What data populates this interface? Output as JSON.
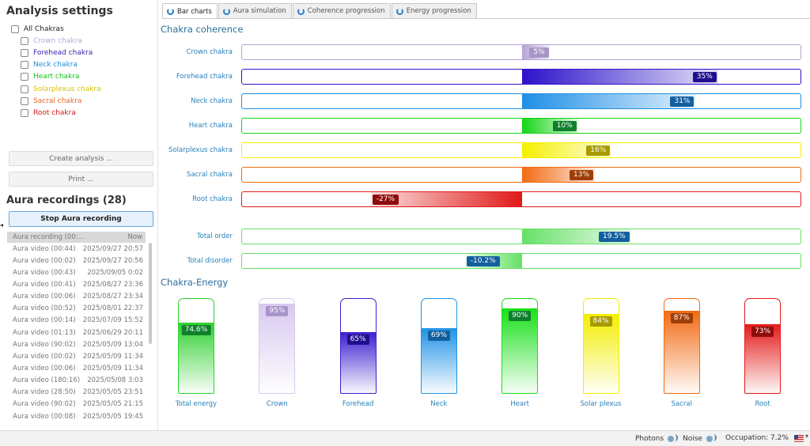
{
  "left": {
    "title": "Analysis settings",
    "all_label": "All Chakras",
    "chakras": [
      {
        "label": "Crown chakra",
        "color": "#b9a9d6"
      },
      {
        "label": "Forehead chakra",
        "color": "#3a1fb0"
      },
      {
        "label": "Neck chakra",
        "color": "#1f8fd9"
      },
      {
        "label": "Heart chakra",
        "color": "#16c21a"
      },
      {
        "label": "Solarplexus chakra",
        "color": "#d7c400"
      },
      {
        "label": "Sacral chakra",
        "color": "#e8651a"
      },
      {
        "label": "Root chakra",
        "color": "#d11a1a"
      }
    ],
    "create_btn": "Create analysis ...",
    "print_btn": "Print ...",
    "recordings_title": "Aura recordings (28)",
    "stop_btn": "Stop Aura recording",
    "rec_head": {
      "name": "Aura recording  (00:...",
      "time": "Now"
    },
    "recordings": [
      {
        "name": "Aura video  (00:44)",
        "time": "2025/09/27 20:57"
      },
      {
        "name": "Aura video  (00:02)",
        "time": "2025/09/27 20:56"
      },
      {
        "name": "Aura video  (00:43)",
        "time": "2025/09/05 0:02"
      },
      {
        "name": "Aura video  (00:41)",
        "time": "2025/08/27 23:36"
      },
      {
        "name": "Aura video  (00:06)",
        "time": "2025/08/27 23:34"
      },
      {
        "name": "Aura video  (00:52)",
        "time": "2025/08/01 22:37"
      },
      {
        "name": "Aura video  (00:14)",
        "time": "2025/07/09 15:52"
      },
      {
        "name": "Aura video  (01:13)",
        "time": "2025/06/29 20:11"
      },
      {
        "name": "Aura video  (90:02)",
        "time": "2025/05/09 13:04"
      },
      {
        "name": "Aura video  (00:02)",
        "time": "2025/05/09 11:34"
      },
      {
        "name": "Aura video  (00:06)",
        "time": "2025/05/09 11:34"
      },
      {
        "name": "Aura video  (180:16)",
        "time": "2025/05/08 3:03"
      },
      {
        "name": "Aura video  (28:50)",
        "time": "2025/05/05 23:51"
      },
      {
        "name": "Aura video  (90:02)",
        "time": "2025/05/05 21:15"
      },
      {
        "name": "Aura video  (00:08)",
        "time": "2025/05/05 19:45"
      }
    ]
  },
  "tabs": [
    {
      "label": "Bar charts",
      "active": true
    },
    {
      "label": "Aura simulation",
      "active": false
    },
    {
      "label": "Coherence progression",
      "active": false
    },
    {
      "label": "Energy progression",
      "active": false
    }
  ],
  "coherence": {
    "title": "Chakra coherence",
    "rows": [
      {
        "label": "Crown chakra",
        "value": 5,
        "text": "5%",
        "color": "#b3a3d4",
        "dark": "#a795c9"
      },
      {
        "label": "Forehead chakra",
        "value": 35,
        "text": "35%",
        "color": "#2c12c9",
        "dark": "#1f0f8c"
      },
      {
        "label": "Neck chakra",
        "value": 31,
        "text": "31%",
        "color": "#1e8fe6",
        "dark": "#135f9e"
      },
      {
        "label": "Heart chakra",
        "value": 10,
        "text": "10%",
        "color": "#14d414",
        "dark": "#0f7f2c"
      },
      {
        "label": "Solarplexus chakra",
        "value": 16,
        "text": "16%",
        "color": "#f5f000",
        "dark": "#a89a00"
      },
      {
        "label": "Sacral chakra",
        "value": 13,
        "text": "13%",
        "color": "#f26a12",
        "dark": "#9e3e06"
      },
      {
        "label": "Root chakra",
        "value": -27,
        "text": "-27%",
        "color": "#e01818",
        "dark": "#8f0c0c"
      }
    ],
    "totals": [
      {
        "label": "Total order",
        "value": 19.5,
        "text": "19.5%",
        "color": "#66e066",
        "dark": "#135f9e"
      },
      {
        "label": "Total disorder",
        "value": -10.2,
        "text": "-10.2%",
        "color": "#66e066",
        "dark": "#135f9e"
      }
    ]
  },
  "energy": {
    "title": "Chakra-Energy",
    "cols": [
      {
        "label": "Total energy",
        "value": 74.6,
        "text": "74.6%",
        "color": "#2fd12f",
        "dark": "#0f7f2c"
      },
      {
        "label": "Crown",
        "value": 95,
        "text": "95%",
        "color": "#d8c9f0",
        "dark": "#a795c9"
      },
      {
        "label": "Forehead",
        "value": 65,
        "text": "65%",
        "color": "#3d1fd0",
        "dark": "#1f0f8c"
      },
      {
        "label": "Neck",
        "value": 69,
        "text": "69%",
        "color": "#2192e6",
        "dark": "#135f9e"
      },
      {
        "label": "Heart",
        "value": 90,
        "text": "90%",
        "color": "#17e017",
        "dark": "#0f7f2c"
      },
      {
        "label": "Solar plexus",
        "value": 84,
        "text": "84%",
        "color": "#f3ee00",
        "dark": "#a89a00"
      },
      {
        "label": "Sacral",
        "value": 87,
        "text": "87%",
        "color": "#f26a12",
        "dark": "#9e3e06"
      },
      {
        "label": "Root",
        "value": 73,
        "text": "73%",
        "color": "#e41a1a",
        "dark": "#8f0c0c"
      }
    ]
  },
  "status": {
    "photons": "Photons",
    "noise": "Noise",
    "occupation": "Occupation: 7.2%"
  }
}
